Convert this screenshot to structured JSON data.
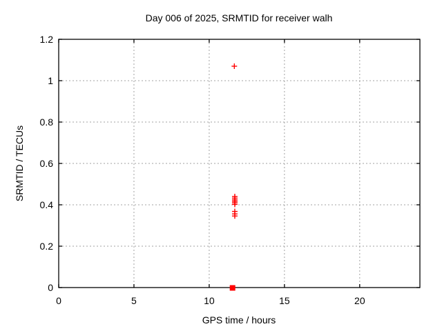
{
  "colors": {
    "background": "#ffffff",
    "axis": "#000000",
    "grid": "#a0a0a0",
    "text": "#000000",
    "marker": "#ff0000"
  },
  "chart_data": {
    "type": "scatter",
    "title": "Day 006 of 2025, SRMTID for receiver walh",
    "xlabel": "GPS time / hours",
    "ylabel": "SRMTID / TECUs",
    "xlim": [
      0,
      24
    ],
    "ylim": [
      0,
      1.2
    ],
    "xticks": [
      0,
      5,
      10,
      15,
      20
    ],
    "xtick_labels": [
      "0",
      "5",
      "10",
      "15",
      "20"
    ],
    "yticks": [
      0,
      0.2,
      0.4,
      0.6,
      0.8,
      1,
      1.2
    ],
    "ytick_labels": [
      "0",
      "0.2",
      "0.4",
      "0.6",
      "0.8",
      "1",
      "1.2"
    ],
    "grid": true,
    "legend": "none",
    "marker": "plus",
    "marker_color": "#ff0000",
    "series": [
      {
        "name": "SRMTID",
        "points": [
          [
            11.67,
            1.07
          ],
          [
            11.7,
            0.44
          ],
          [
            11.7,
            0.432
          ],
          [
            11.7,
            0.424
          ],
          [
            11.7,
            0.417
          ],
          [
            11.7,
            0.41
          ],
          [
            11.7,
            0.402
          ],
          [
            11.7,
            0.368
          ],
          [
            11.7,
            0.356
          ],
          [
            11.7,
            0.346
          ]
        ]
      }
    ],
    "zero_cluster": {
      "x": 11.55,
      "y": 0.0,
      "appearance": "solid-square",
      "note": "dense overlapping points at zero"
    }
  }
}
